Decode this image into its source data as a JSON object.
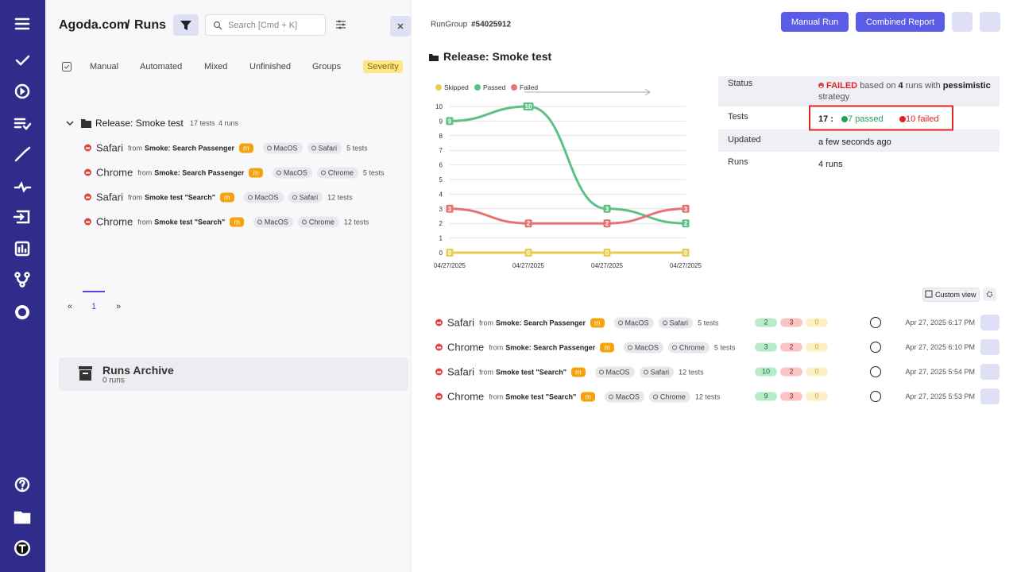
{
  "header": {
    "org": "Agoda.com",
    "separator": "/",
    "page": "Runs",
    "search_placeholder": "Search [Cmd + K]"
  },
  "tabs": [
    "Manual",
    "Automated",
    "Mixed",
    "Unfinished",
    "Groups",
    "Severity"
  ],
  "tree": {
    "title": "Release: Smoke test",
    "tests": "17 tests",
    "runs": "4 runs",
    "rows": [
      {
        "name": "Safari",
        "from": "from",
        "suite": "Smoke: Search Passenger",
        "priority": "m",
        "os": "MacOS",
        "browser": "Safari",
        "tests": "5 tests"
      },
      {
        "name": "Chrome",
        "from": "from",
        "suite": "Smoke: Search Passenger",
        "priority": "m",
        "os": "MacOS",
        "browser": "Chrome",
        "tests": "5 tests"
      },
      {
        "name": "Safari",
        "from": "from",
        "suite": "Smoke test \"Search\"",
        "priority": "m",
        "os": "MacOS",
        "browser": "Safari",
        "tests": "12 tests"
      },
      {
        "name": "Chrome",
        "from": "from",
        "suite": "Smoke test \"Search\"",
        "priority": "m",
        "os": "MacOS",
        "browser": "Chrome",
        "tests": "12 tests"
      }
    ]
  },
  "pagination": {
    "prev": "«",
    "page": "1",
    "next": "»"
  },
  "archive": {
    "title": "Runs Archive",
    "count": "0 runs"
  },
  "detail": {
    "group": "RunGroup",
    "group_id": "#54025912",
    "manual_run": "Manual Run",
    "combined_report": "Combined Report",
    "title": "Release: Smoke test",
    "info": {
      "status_label": "Status",
      "status": "FAILED",
      "status_text_1": "based on",
      "status_runs": "4",
      "status_text_2": "runs with",
      "strategy": "pessimistic",
      "status_text_3": "strategy",
      "tests_label": "Tests",
      "tests_total": "17 :",
      "passed": "7 passed",
      "failed": "10 failed",
      "updated_label": "Updated",
      "updated": "a few seconds ago",
      "runs_label": "Runs",
      "runs": "4 runs"
    },
    "custom_view": "Custom view",
    "runs": [
      {
        "name": "Safari",
        "from": "from",
        "suite": "Smoke: Search Passenger",
        "priority": "m",
        "os": "MacOS",
        "browser": "Safari",
        "tests": "5 tests",
        "passed": 2,
        "failed": 3,
        "skipped": 0,
        "date": "Apr 27, 2025 6:17 PM"
      },
      {
        "name": "Chrome",
        "from": "from",
        "suite": "Smoke: Search Passenger",
        "priority": "m",
        "os": "MacOS",
        "browser": "Chrome",
        "tests": "5 tests",
        "passed": 3,
        "failed": 2,
        "skipped": 0,
        "date": "Apr 27, 2025 6:10 PM"
      },
      {
        "name": "Safari",
        "from": "from",
        "suite": "Smoke test \"Search\"",
        "priority": "m",
        "os": "MacOS",
        "browser": "Safari",
        "tests": "12 tests",
        "passed": 10,
        "failed": 2,
        "skipped": 0,
        "date": "Apr 27, 2025 5:54 PM"
      },
      {
        "name": "Chrome",
        "from": "from",
        "suite": "Smoke test \"Search\"",
        "priority": "m",
        "os": "MacOS",
        "browser": "Chrome",
        "tests": "12 tests",
        "passed": 9,
        "failed": 3,
        "skipped": 0,
        "date": "Apr 27, 2025 5:53 PM"
      }
    ]
  },
  "chart_data": {
    "type": "line",
    "categories": [
      "04/27/2025",
      "04/27/2025",
      "04/27/2025",
      "04/27/2025"
    ],
    "series": [
      {
        "name": "Skipped",
        "color": "#e8cc4e",
        "values": [
          0,
          0,
          0,
          0
        ]
      },
      {
        "name": "Passed",
        "color": "#5cc087",
        "values": [
          9,
          10,
          3,
          2
        ]
      },
      {
        "name": "Failed",
        "color": "#e57373",
        "values": [
          3,
          2,
          2,
          3
        ]
      }
    ],
    "ylim": [
      0,
      10
    ],
    "yticks": [
      0,
      1,
      2,
      3,
      4,
      5,
      6,
      7,
      8,
      9,
      10
    ],
    "grid": true
  }
}
